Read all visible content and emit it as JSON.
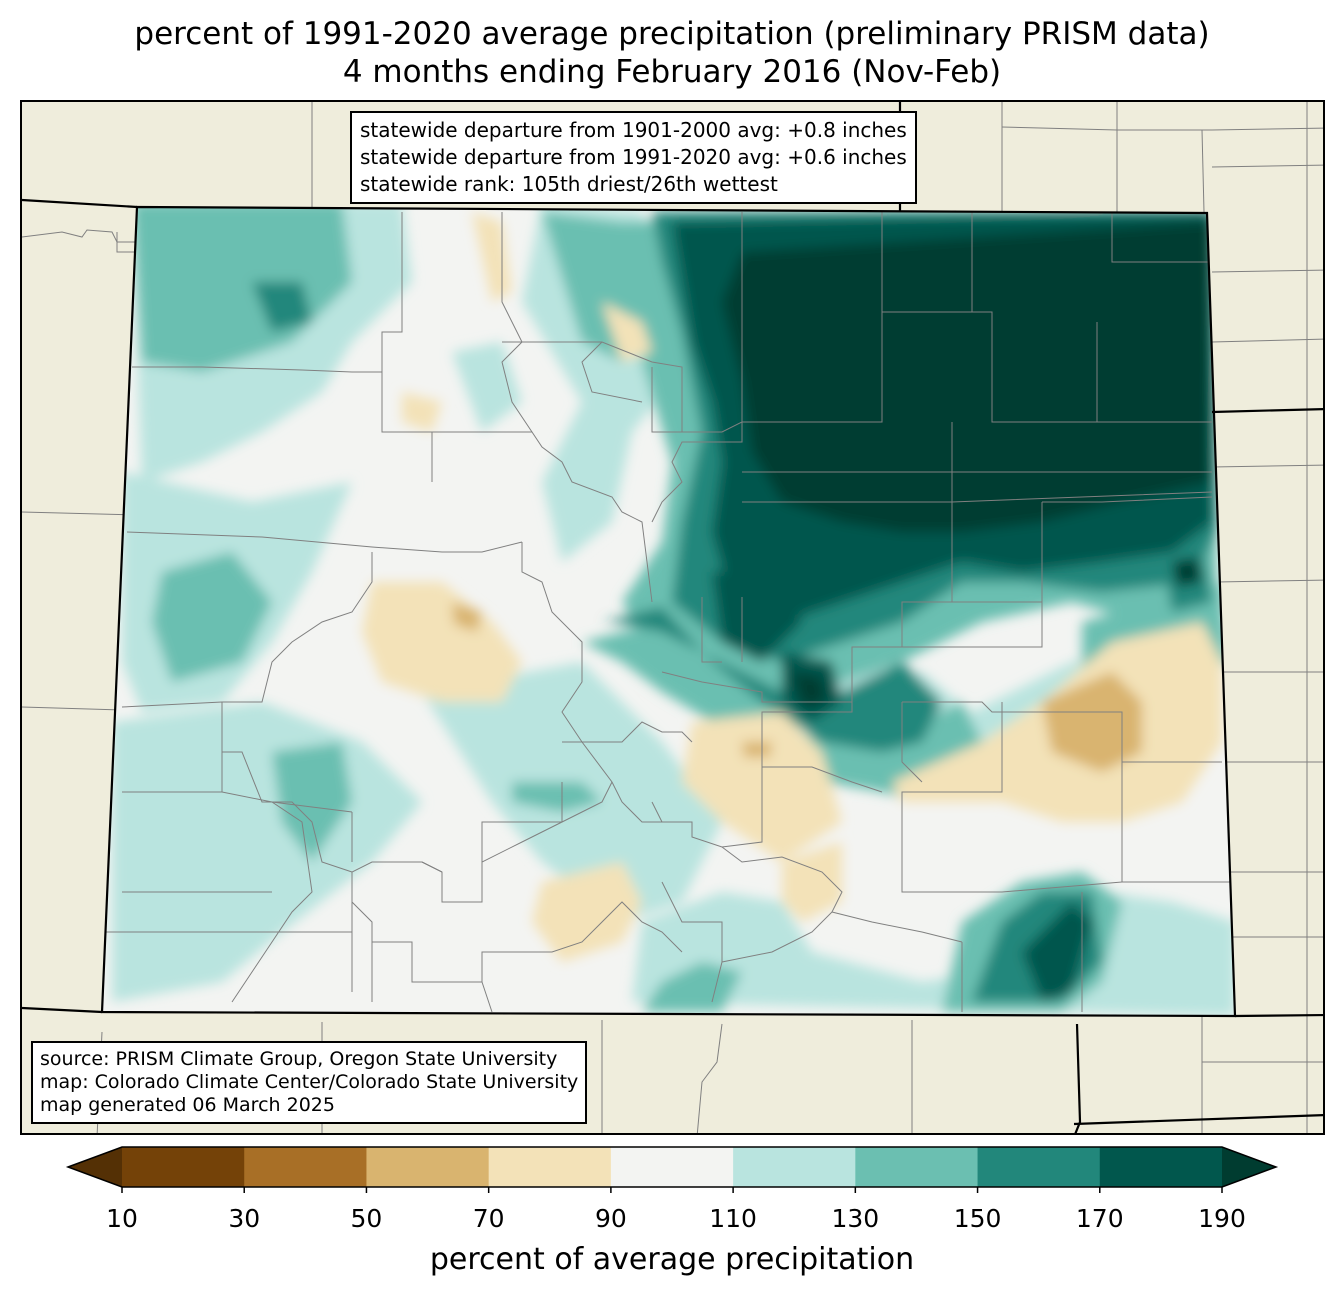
{
  "title": {
    "line1": "percent of 1991-2020 average precipitation (preliminary PRISM data)",
    "line2": "4 months ending February 2016 (Nov-Feb)"
  },
  "stats": {
    "line1": "statewide departure from 1901-2000 avg: +0.8 inches",
    "line2": "statewide departure from 1991-2020 avg: +0.6 inches",
    "line3": "statewide rank: 105th driest/26th wettest"
  },
  "source": {
    "line1": "source: PRISM Climate Group, Oregon State University",
    "line2": "map: Colorado Climate Center/Colorado State University",
    "line3": "map generated 06 March 2025"
  },
  "colorbar": {
    "label": "percent of average precipitation",
    "ticks": [
      "10",
      "30",
      "50",
      "70",
      "90",
      "110",
      "130",
      "150",
      "170",
      "190"
    ],
    "bins": [
      {
        "range": "<10",
        "color": "#543005"
      },
      {
        "range": "10-30",
        "color": "#744208"
      },
      {
        "range": "30-50",
        "color": "#a86f26"
      },
      {
        "range": "50-70",
        "color": "#d9b46f"
      },
      {
        "range": "70-90",
        "color": "#f3e2b8"
      },
      {
        "range": "90-110",
        "color": "#f3f4f2"
      },
      {
        "range": "110-130",
        "color": "#b9e4df"
      },
      {
        "range": "130-150",
        "color": "#6bbfb1"
      },
      {
        "range": "150-170",
        "color": "#22877b"
      },
      {
        "range": "170-190",
        "color": "#01574d"
      },
      {
        "range": ">190",
        "color": "#003c30"
      }
    ]
  },
  "colors": {
    "background_land": "#efeddc",
    "county_lines": "#808080",
    "state_lines": "#000000"
  }
}
